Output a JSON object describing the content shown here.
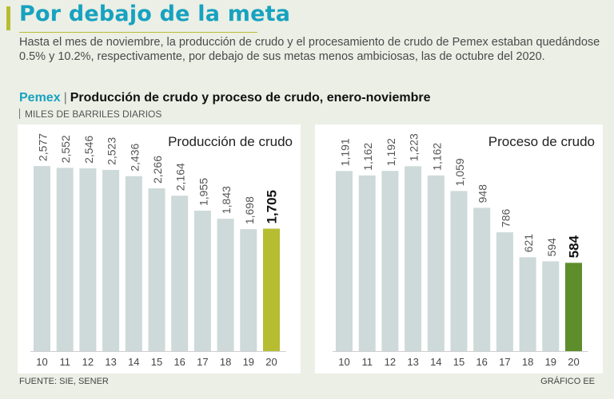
{
  "header": {
    "title": "Por debajo de la meta",
    "description": "Hasta el mes de noviembre, la producción de crudo y el procesamiento de crudo de Pemex estaban quedándose 0.5% y 10.2%, respectivamente, por debajo de sus metas menos ambiciosas, las de octubre del 2020."
  },
  "subhead": {
    "brand": "Pemex",
    "separator": "|",
    "text": "Producción de crudo y proceso de crudo, enero-noviembre"
  },
  "units": "MILES DE BARRILES DIARIOS",
  "colors": {
    "title": "#17a2c0",
    "bar": "#ced9d9",
    "highlight_left": "#b7bd33",
    "highlight_right": "#5e8d2b",
    "background": "#ecefe6"
  },
  "chart_data": [
    {
      "type": "bar",
      "title": "Producción de crudo",
      "categories": [
        "10",
        "11",
        "12",
        "13",
        "14",
        "15",
        "16",
        "17",
        "18",
        "19",
        "20"
      ],
      "values": [
        2577,
        2552,
        2546,
        2523,
        2436,
        2266,
        2164,
        1955,
        1843,
        1698,
        1705
      ],
      "value_labels": [
        "2,577",
        "2,552",
        "2,546",
        "2,523",
        "2,436",
        "2,266",
        "2,164",
        "1,955",
        "1,843",
        "1,698",
        "1,705"
      ],
      "highlight_index": 10,
      "ylim": [
        0,
        2800
      ],
      "xlabel": "",
      "ylabel": ""
    },
    {
      "type": "bar",
      "title": "Proceso de crudo",
      "categories": [
        "10",
        "11",
        "12",
        "13",
        "14",
        "15",
        "16",
        "17",
        "18",
        "19",
        "20"
      ],
      "values": [
        1191,
        1162,
        1192,
        1223,
        1162,
        1059,
        948,
        786,
        621,
        594,
        584
      ],
      "value_labels": [
        "1,191",
        "1,162",
        "1,192",
        "1,223",
        "1,162",
        "1,059",
        "948",
        "786",
        "621",
        "594",
        "584"
      ],
      "highlight_index": 10,
      "ylim": [
        0,
        1330
      ],
      "xlabel": "",
      "ylabel": ""
    }
  ],
  "footer": {
    "source": "FUENTE: SIE, SENER",
    "credit": "GRÁFICO EE"
  }
}
